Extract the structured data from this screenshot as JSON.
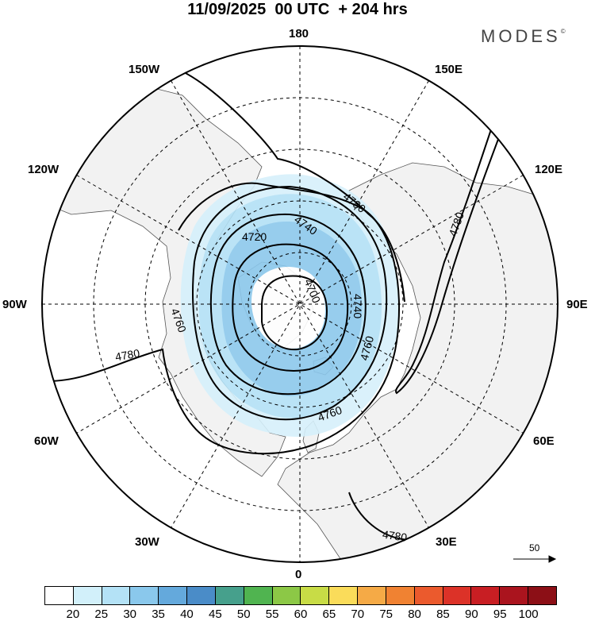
{
  "header": {
    "title": "11/09/2025  00 UTC  + 204 hrs",
    "brand": "MODES",
    "brand_mark": "©"
  },
  "map": {
    "meridian_labels": {
      "lon_180": "180",
      "lon_0": "0",
      "lon_90w": "90W",
      "lon_90e": "90E",
      "lon_150w": "150W",
      "lon_150e": "150E",
      "lon_120w": "120W",
      "lon_120e": "120E",
      "lon_60w": "60W",
      "lon_60e": "60E",
      "lon_30w": "30W",
      "lon_30e": "30E"
    },
    "contour_labels": [
      "4780",
      "4740",
      "4720",
      "4700",
      "4740",
      "4760",
      "4760",
      "4760",
      "4780",
      "4780",
      "4780"
    ],
    "wind_scale_label": "50",
    "shading_colors": [
      "#d6f0fb",
      "#b3e1f6",
      "#8cc8ec"
    ],
    "contour_color": "#000000",
    "land_color": "#f2f2f2"
  },
  "colorbar": {
    "colors": [
      "#ffffff",
      "#d2f0fa",
      "#b4e2f6",
      "#8ac8ec",
      "#64a9dc",
      "#4a8cc8",
      "#46a08c",
      "#50b450",
      "#8cc846",
      "#c8dc46",
      "#fadc5a",
      "#f5aa46",
      "#f08232",
      "#eb5a2d",
      "#dc3228",
      "#c81e23",
      "#aa141e",
      "#8c0f16"
    ],
    "ticks": [
      "20",
      "25",
      "30",
      "35",
      "40",
      "45",
      "50",
      "55",
      "60",
      "65",
      "70",
      "75",
      "80",
      "85",
      "90",
      "95",
      "100"
    ]
  }
}
